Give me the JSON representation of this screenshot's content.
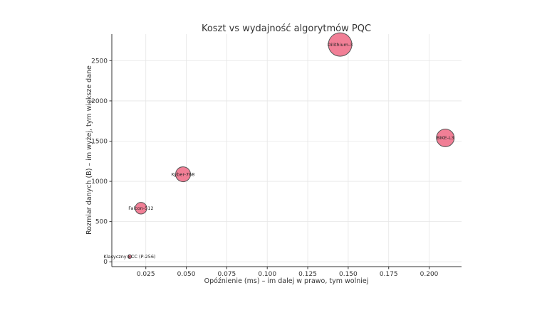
{
  "chart_data": {
    "type": "scatter",
    "title": "Koszt vs wydajność algorytmów PQC",
    "xlabel": "Opóźnienie (ms) – im dalej w prawo, tym wolniej",
    "ylabel": "Rozmiar danych (B) – im wyżej, tym większe dane",
    "xlim": [
      0.004,
      0.22
    ],
    "ylim": [
      -60,
      2830
    ],
    "xticks": [
      0.025,
      0.05,
      0.075,
      0.1,
      0.125,
      0.15,
      0.175,
      0.2
    ],
    "xtick_labels": [
      "0.025",
      "0.050",
      "0.075",
      "0.100",
      "0.125",
      "0.150",
      "0.175",
      "0.200"
    ],
    "yticks": [
      0,
      500,
      1000,
      1500,
      2000,
      2500
    ],
    "ytick_labels": [
      "0",
      "500",
      "1000",
      "1500",
      "2000",
      "2500"
    ],
    "grid": true,
    "marker_color": "#f07890",
    "marker_edge_color": "#555555",
    "points": [
      {
        "label": "Klasyczny ECC (P-256)",
        "x": 0.015,
        "y": 64,
        "size": 64
      },
      {
        "label": "Falcon-512",
        "x": 0.022,
        "y": 666,
        "size": 666
      },
      {
        "label": "Kyber-768",
        "x": 0.048,
        "y": 1088,
        "size": 1088
      },
      {
        "label": "Dilithium-3",
        "x": 0.145,
        "y": 2701,
        "size": 2701
      },
      {
        "label": "BIKE-L3",
        "x": 0.21,
        "y": 1540,
        "size": 1540
      }
    ]
  }
}
